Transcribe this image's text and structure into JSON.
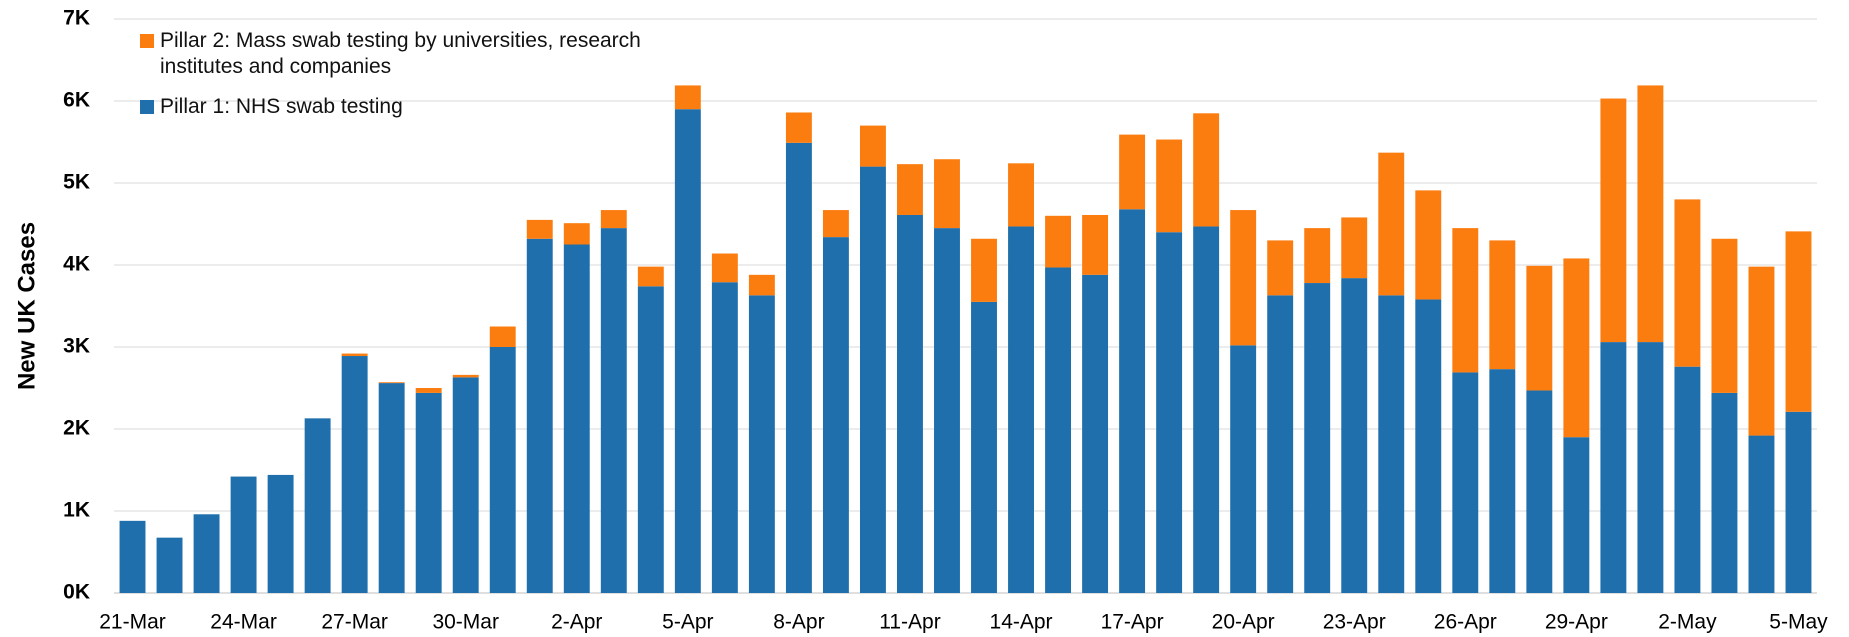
{
  "chart_data": {
    "type": "stacked_bar",
    "ylabel": "New UK Cases",
    "categories": [
      "21-Mar",
      null,
      null,
      "24-Mar",
      null,
      null,
      "27-Mar",
      null,
      null,
      "30-Mar",
      null,
      null,
      "2-Apr",
      null,
      null,
      "5-Apr",
      null,
      null,
      "8-Apr",
      null,
      null,
      "11-Apr",
      null,
      null,
      "14-Apr",
      null,
      null,
      "17-Apr",
      null,
      null,
      "20-Apr",
      null,
      null,
      "23-Apr",
      null,
      null,
      "26-Apr",
      null,
      null,
      "29-Apr",
      null,
      null,
      "2-May",
      null,
      null,
      "5-May"
    ],
    "series": [
      {
        "name": "Pillar 1: NHS swab testing",
        "color": "#1f6fad",
        "values": [
          880,
          675,
          960,
          1420,
          1440,
          2130,
          2890,
          2560,
          2440,
          2630,
          3000,
          4320,
          4250,
          4450,
          3740,
          5900,
          3790,
          3630,
          5490,
          4340,
          5200,
          4610,
          4450,
          3550,
          4470,
          3970,
          3880,
          4680,
          4400,
          4470,
          3020,
          3630,
          3780,
          3840,
          3630,
          3580,
          2690,
          2730,
          2470,
          1900,
          3060,
          3060,
          2760,
          2440,
          1920,
          2210
        ]
      },
      {
        "name": "Pillar 2: Mass swab testing by universities, research institutes and companies",
        "color": "#fb7d10",
        "values": [
          0,
          0,
          0,
          0,
          0,
          0,
          30,
          10,
          60,
          30,
          250,
          230,
          260,
          220,
          240,
          290,
          350,
          250,
          370,
          330,
          500,
          620,
          840,
          770,
          770,
          630,
          730,
          910,
          1130,
          1380,
          1650,
          670,
          670,
          740,
          1740,
          1330,
          1760,
          1570,
          1520,
          2180,
          2970,
          3130,
          2040,
          1880,
          2060,
          2200
        ]
      }
    ],
    "ylim": [
      0,
      7000
    ],
    "yticks": [
      {
        "value": 0,
        "label": "0K"
      },
      {
        "value": 1000,
        "label": "1K"
      },
      {
        "value": 2000,
        "label": "2K"
      },
      {
        "value": 3000,
        "label": "3K"
      },
      {
        "value": 4000,
        "label": "4K"
      },
      {
        "value": 5000,
        "label": "5K"
      },
      {
        "value": 6000,
        "label": "6K"
      },
      {
        "value": 7000,
        "label": "7K"
      }
    ],
    "grid": true,
    "legend": "upper-left"
  }
}
